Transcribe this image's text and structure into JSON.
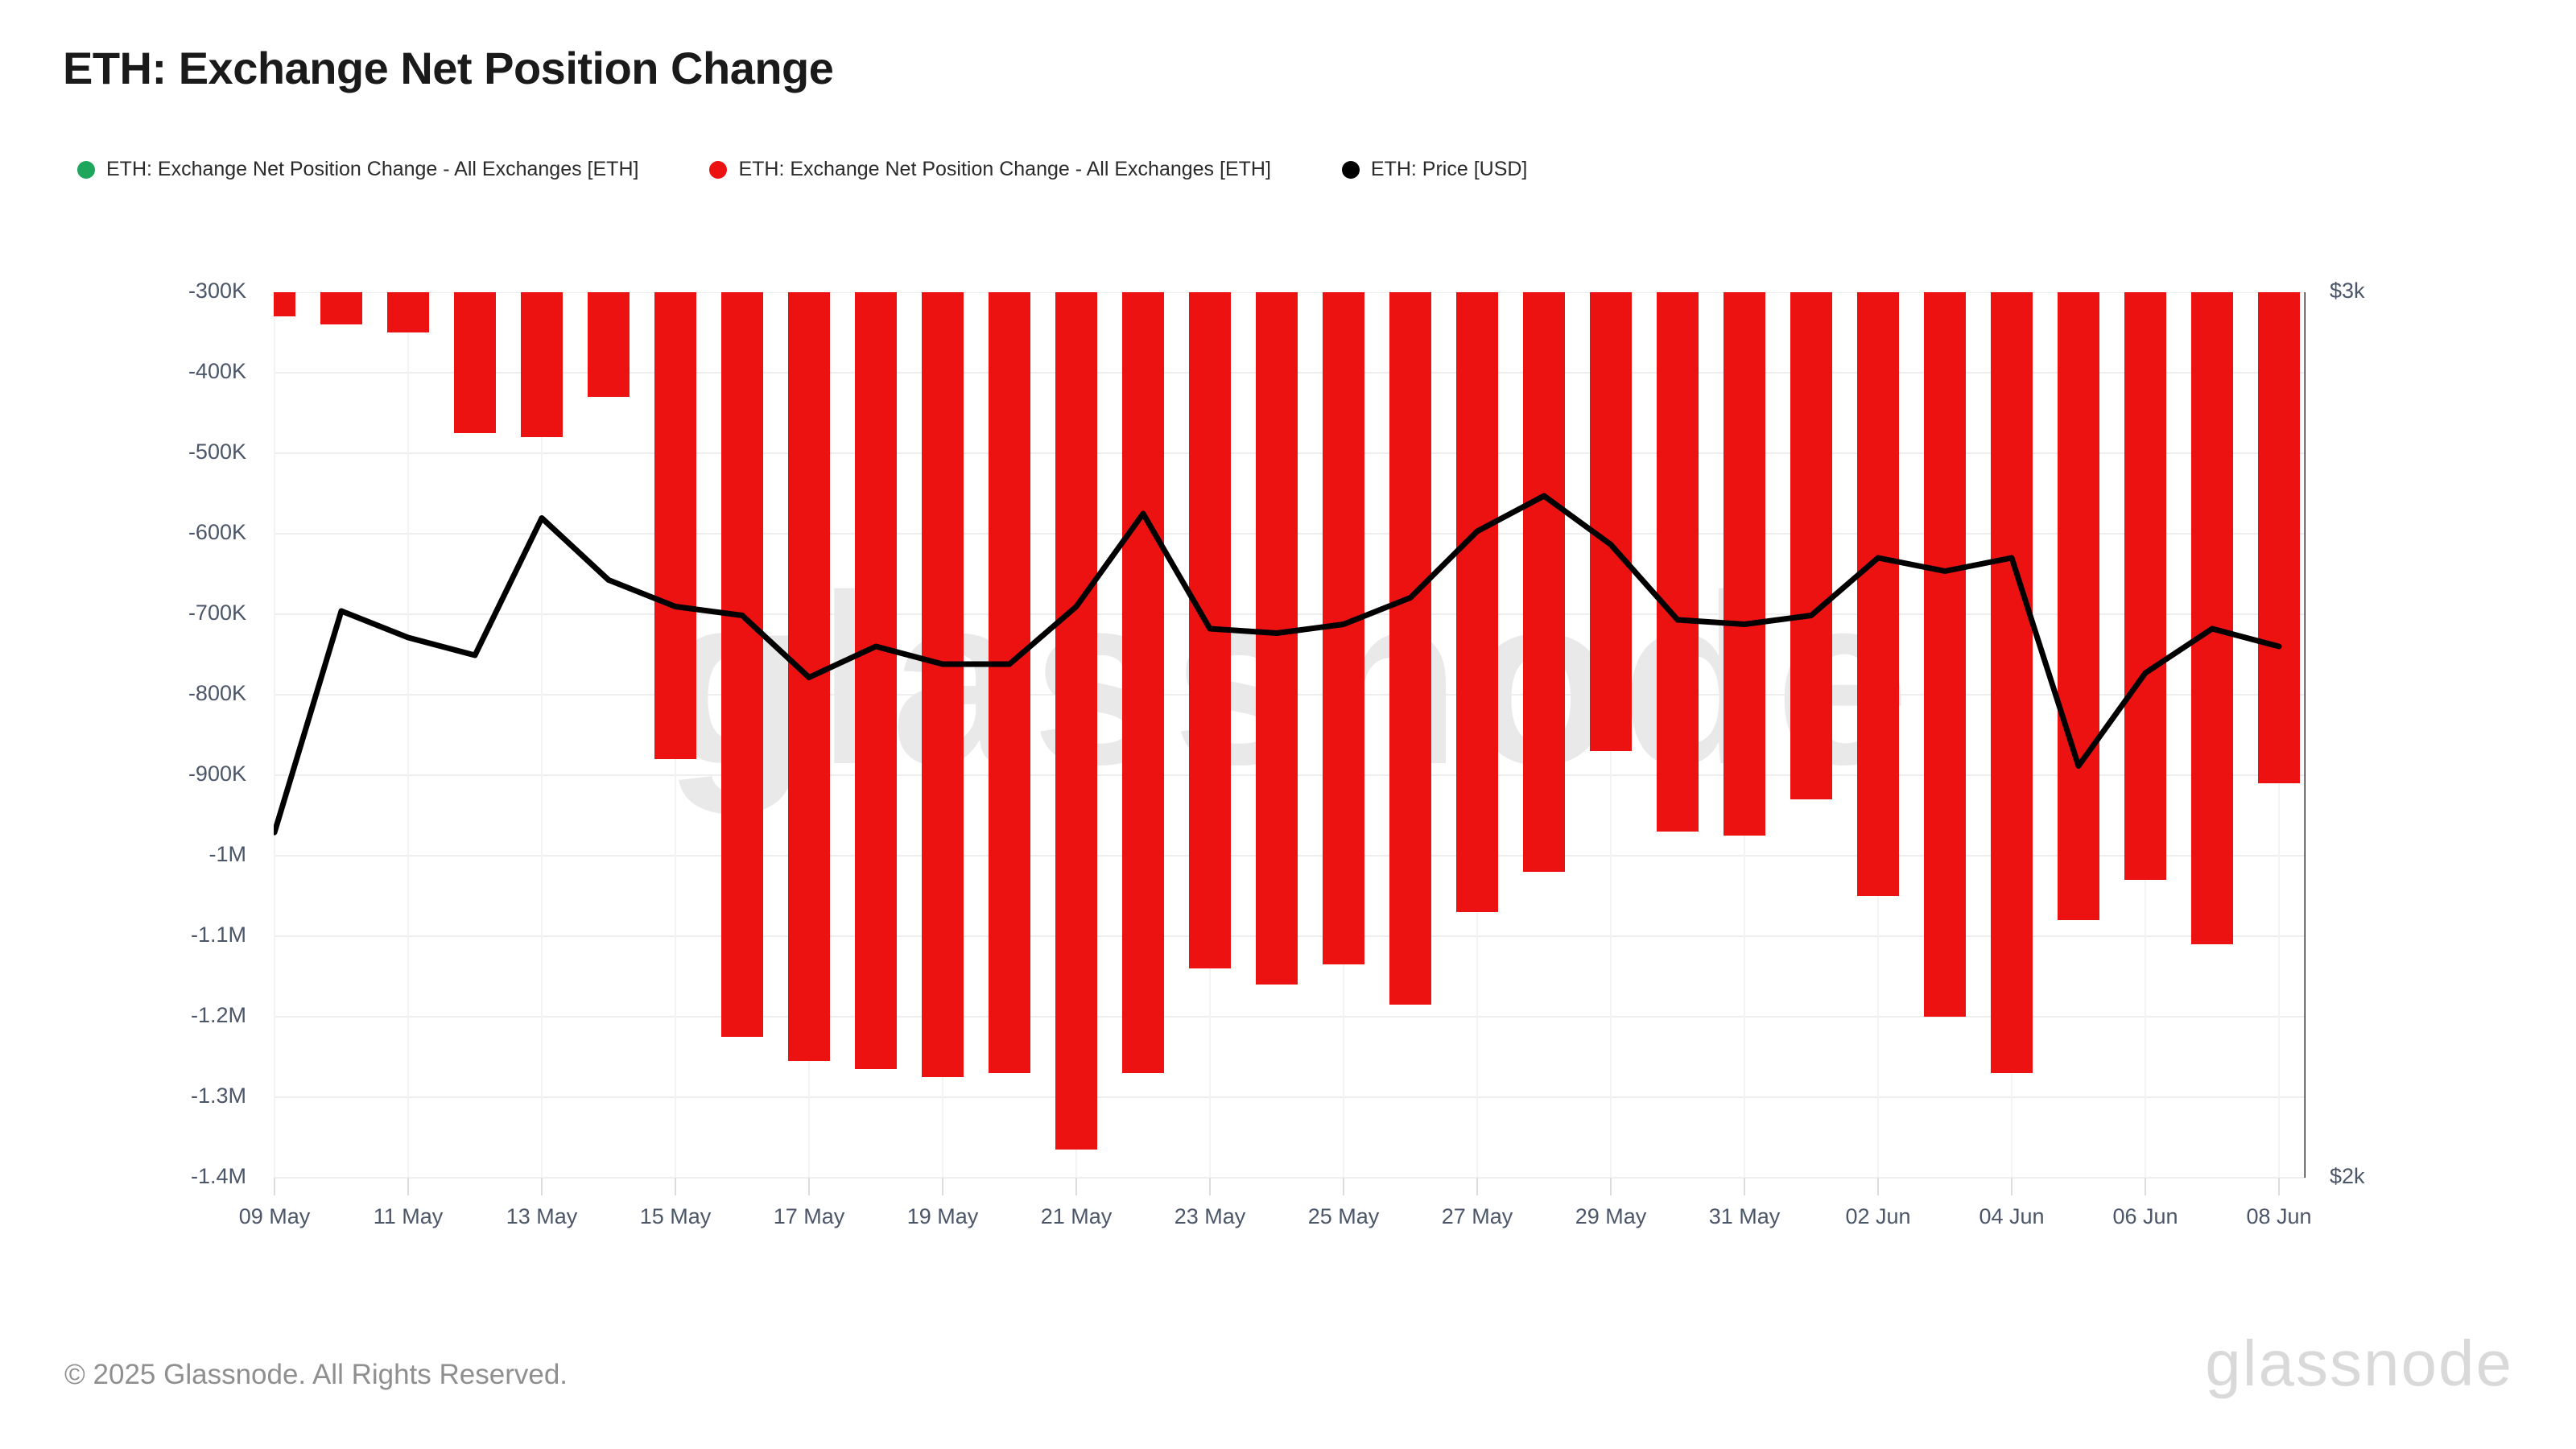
{
  "header": {
    "title": "ETH: Exchange Net Position Change"
  },
  "legend": {
    "items": [
      {
        "label": "ETH: Exchange Net Position Change - All Exchanges [ETH]",
        "color": "#1ea65c"
      },
      {
        "label": "ETH: Exchange Net Position Change - All Exchanges [ETH]",
        "color": "#ec1212"
      },
      {
        "label": "ETH: Price [USD]",
        "color": "#000000"
      }
    ]
  },
  "watermark": "glassnode",
  "footer": {
    "copyright": "© 2025 Glassnode. All Rights Reserved.",
    "brand": "glassnode"
  },
  "colors": {
    "bar_negative": "#ec1212",
    "bar_positive": "#1ea65c",
    "price_line": "#000000",
    "grid_horizontal": "#eeeeee",
    "grid_vertical": "#f3f3f3",
    "tick_stub": "#dcdcdc",
    "right_axis_line": "#2f2f2f",
    "tick_label": "#4b5668",
    "watermark": "#e9e9e9",
    "title": "#1a1a1a",
    "footer_text": "#8f8f8f",
    "brand_text": "#d9d9d9",
    "background": "#ffffff"
  },
  "chart_data": {
    "type": "bar+line",
    "title": "ETH: Exchange Net Position Change",
    "grid": true,
    "legend_position": "top",
    "categories": [
      "09 May",
      "10 May",
      "11 May",
      "12 May",
      "13 May",
      "14 May",
      "15 May",
      "16 May",
      "17 May",
      "18 May",
      "19 May",
      "20 May",
      "21 May",
      "22 May",
      "23 May",
      "24 May",
      "25 May",
      "26 May",
      "27 May",
      "28 May",
      "29 May",
      "30 May",
      "31 May",
      "01 Jun",
      "02 Jun",
      "03 Jun",
      "04 Jun",
      "05 Jun",
      "06 Jun",
      "07 Jun",
      "08 Jun"
    ],
    "series": [
      {
        "name": "ETH: Exchange Net Position Change - All Exchanges [ETH]",
        "type": "bar",
        "unit": "ETH",
        "color_negative": "#ec1212",
        "color_positive": "#1ea65c",
        "values": [
          -330000,
          -340000,
          -350000,
          -475000,
          -480000,
          -430000,
          -880000,
          -1225000,
          -1255000,
          -1265000,
          -1275000,
          -1270000,
          -1365000,
          -1270000,
          -1140000,
          -1160000,
          -1135000,
          -1185000,
          -1070000,
          -1020000,
          -870000,
          -970000,
          -975000,
          -930000,
          -1050000,
          -1200000,
          -1270000,
          -1080000,
          -1030000,
          -1110000,
          -910000
        ]
      },
      {
        "name": "ETH: Price [USD]",
        "type": "line",
        "axis": "right",
        "color": "#000000",
        "values": [
          2390,
          2640,
          2610,
          2590,
          2745,
          2675,
          2645,
          2635,
          2565,
          2600,
          2580,
          2580,
          2645,
          2750,
          2620,
          2615,
          2625,
          2655,
          2730,
          2770,
          2715,
          2630,
          2625,
          2635,
          2700,
          2685,
          2700,
          2465,
          2570,
          2620,
          2600
        ]
      }
    ],
    "left_axis": {
      "range": [
        -1400000,
        -300000
      ],
      "ticks": [
        {
          "label": "-300K",
          "value": -300000
        },
        {
          "label": "-400K",
          "value": -400000
        },
        {
          "label": "-500K",
          "value": -500000
        },
        {
          "label": "-600K",
          "value": -600000
        },
        {
          "label": "-700K",
          "value": -700000
        },
        {
          "label": "-800K",
          "value": -800000
        },
        {
          "label": "-900K",
          "value": -900000
        },
        {
          "label": "-1M",
          "value": -1000000
        },
        {
          "label": "-1.1M",
          "value": -1100000
        },
        {
          "label": "-1.2M",
          "value": -1200000
        },
        {
          "label": "-1.3M",
          "value": -1300000
        },
        {
          "label": "-1.4M",
          "value": -1400000
        }
      ]
    },
    "right_axis": {
      "range": [
        2000,
        3000
      ],
      "ticks": [
        {
          "label": "$3k",
          "value": 3000
        },
        {
          "label": "$2k",
          "value": 2000
        }
      ]
    },
    "x_axis": {
      "tick_every": 2,
      "tick_labels": [
        "09 May",
        "11 May",
        "13 May",
        "15 May",
        "17 May",
        "19 May",
        "21 May",
        "23 May",
        "25 May",
        "27 May",
        "29 May",
        "31 May",
        "02 Jun",
        "04 Jun",
        "06 Jun",
        "08 Jun"
      ]
    }
  }
}
